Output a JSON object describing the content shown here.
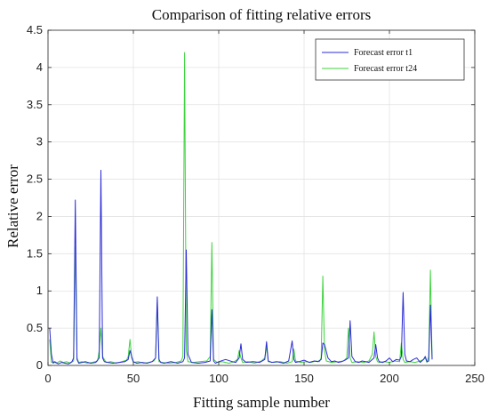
{
  "chart_data": {
    "type": "line",
    "title": "Comparison of fitting relative errors",
    "xlabel": "Fitting sample number",
    "ylabel": "Relative error",
    "xlim": [
      0,
      250
    ],
    "ylim": [
      0,
      4.5
    ],
    "xticks": [
      0,
      50,
      100,
      150,
      200,
      250
    ],
    "yticks": [
      0,
      0.5,
      1,
      1.5,
      2,
      2.5,
      3,
      3.5,
      4,
      4.5
    ],
    "xtick_labels": [
      "0",
      "50",
      "100",
      "150",
      "200",
      "250"
    ],
    "ytick_labels": [
      "0",
      "0.5",
      "1",
      "1.5",
      "2",
      "2.5",
      "3",
      "3.5",
      "4",
      "4.5"
    ],
    "grid": true,
    "legend_position": "top-right",
    "colors": {
      "t1": "#2b2bd6",
      "t24": "#3fd33f"
    },
    "series": [
      {
        "name": "Forecast error t1",
        "color": "#2b2bd6",
        "x": [
          1,
          2,
          3,
          4,
          6,
          8,
          10,
          12,
          14,
          15,
          16,
          17,
          18,
          20,
          22,
          25,
          28,
          30,
          31,
          32,
          33,
          35,
          38,
          42,
          45,
          47,
          48,
          49,
          50,
          52,
          55,
          58,
          61,
          63,
          64,
          65,
          66,
          68,
          72,
          76,
          79,
          80,
          81,
          82,
          84,
          88,
          92,
          95,
          96,
          97,
          98,
          100,
          104,
          108,
          110,
          112,
          113,
          114,
          116,
          120,
          124,
          127,
          128,
          129,
          131,
          134,
          138,
          141,
          143,
          144,
          145,
          147,
          150,
          153,
          156,
          158,
          160,
          161,
          162,
          164,
          166,
          168,
          170,
          172,
          174,
          176,
          177,
          178,
          180,
          182,
          184,
          186,
          188,
          190,
          191,
          192,
          193,
          194,
          196,
          198,
          200,
          202,
          204,
          206,
          207,
          208,
          209,
          210,
          212,
          214,
          216,
          218,
          220,
          221,
          222,
          223,
          224,
          225
        ],
        "y": [
          0.5,
          0.15,
          0.03,
          0.05,
          0.02,
          0.04,
          0.03,
          0.02,
          0.05,
          0.1,
          2.22,
          0.08,
          0.03,
          0.04,
          0.05,
          0.03,
          0.04,
          0.1,
          2.62,
          0.1,
          0.05,
          0.04,
          0.03,
          0.04,
          0.05,
          0.08,
          0.2,
          0.12,
          0.05,
          0.03,
          0.04,
          0.03,
          0.05,
          0.1,
          0.92,
          0.08,
          0.04,
          0.03,
          0.05,
          0.03,
          0.05,
          0.1,
          1.55,
          0.15,
          0.04,
          0.03,
          0.04,
          0.06,
          0.75,
          0.06,
          0.03,
          0.05,
          0.08,
          0.05,
          0.04,
          0.1,
          0.29,
          0.08,
          0.04,
          0.05,
          0.04,
          0.08,
          0.32,
          0.06,
          0.04,
          0.05,
          0.03,
          0.06,
          0.33,
          0.08,
          0.04,
          0.05,
          0.07,
          0.04,
          0.06,
          0.05,
          0.08,
          0.3,
          0.28,
          0.1,
          0.05,
          0.06,
          0.04,
          0.05,
          0.07,
          0.1,
          0.6,
          0.12,
          0.05,
          0.04,
          0.06,
          0.05,
          0.04,
          0.08,
          0.1,
          0.28,
          0.1,
          0.05,
          0.04,
          0.06,
          0.1,
          0.05,
          0.08,
          0.07,
          0.12,
          0.98,
          0.15,
          0.06,
          0.05,
          0.08,
          0.1,
          0.04,
          0.08,
          0.12,
          0.05,
          0.06,
          0.81,
          0.08
        ]
      },
      {
        "name": "Forecast error t24",
        "color": "#3fd33f",
        "x": [
          1,
          2,
          3,
          5,
          7,
          9,
          11,
          13,
          15,
          16,
          17,
          18,
          20,
          23,
          26,
          29,
          30,
          31,
          32,
          34,
          37,
          40,
          43,
          46,
          47,
          48,
          49,
          50,
          53,
          56,
          59,
          62,
          63,
          64,
          65,
          67,
          71,
          75,
          78,
          79,
          80,
          81,
          82,
          85,
          89,
          93,
          95,
          96,
          97,
          99,
          102,
          106,
          109,
          111,
          112,
          113,
          114,
          117,
          121,
          125,
          127,
          128,
          129,
          132,
          136,
          140,
          143,
          144,
          145,
          148,
          151,
          154,
          157,
          159,
          160,
          161,
          162,
          163,
          166,
          170,
          173,
          175,
          176,
          177,
          178,
          181,
          185,
          188,
          190,
          191,
          192,
          193,
          194,
          197,
          200,
          203,
          206,
          207,
          208,
          209,
          212,
          215,
          218,
          220,
          221,
          222,
          223,
          224,
          225
        ],
        "y": [
          0.35,
          0.04,
          0.05,
          0.03,
          0.06,
          0.04,
          0.05,
          0.03,
          0.06,
          1.6,
          0.1,
          0.04,
          0.05,
          0.03,
          0.04,
          0.06,
          0.2,
          0.5,
          0.12,
          0.04,
          0.05,
          0.03,
          0.05,
          0.07,
          0.12,
          0.35,
          0.1,
          0.04,
          0.05,
          0.03,
          0.04,
          0.06,
          0.1,
          0.85,
          0.05,
          0.04,
          0.03,
          0.04,
          0.06,
          0.12,
          4.2,
          0.2,
          0.05,
          0.04,
          0.05,
          0.06,
          0.12,
          1.65,
          0.08,
          0.04,
          0.05,
          0.03,
          0.05,
          0.08,
          0.2,
          0.1,
          0.04,
          0.05,
          0.03,
          0.06,
          0.1,
          0.25,
          0.05,
          0.04,
          0.05,
          0.03,
          0.05,
          0.22,
          0.06,
          0.04,
          0.05,
          0.04,
          0.06,
          0.05,
          0.1,
          1.2,
          0.2,
          0.06,
          0.04,
          0.05,
          0.06,
          0.1,
          0.5,
          0.1,
          0.04,
          0.05,
          0.04,
          0.06,
          0.15,
          0.45,
          0.12,
          0.05,
          0.04,
          0.05,
          0.04,
          0.06,
          0.05,
          0.3,
          0.08,
          0.04,
          0.05,
          0.04,
          0.06,
          0.08,
          0.1,
          0.04,
          0.12,
          1.28,
          0.1
        ]
      }
    ]
  }
}
